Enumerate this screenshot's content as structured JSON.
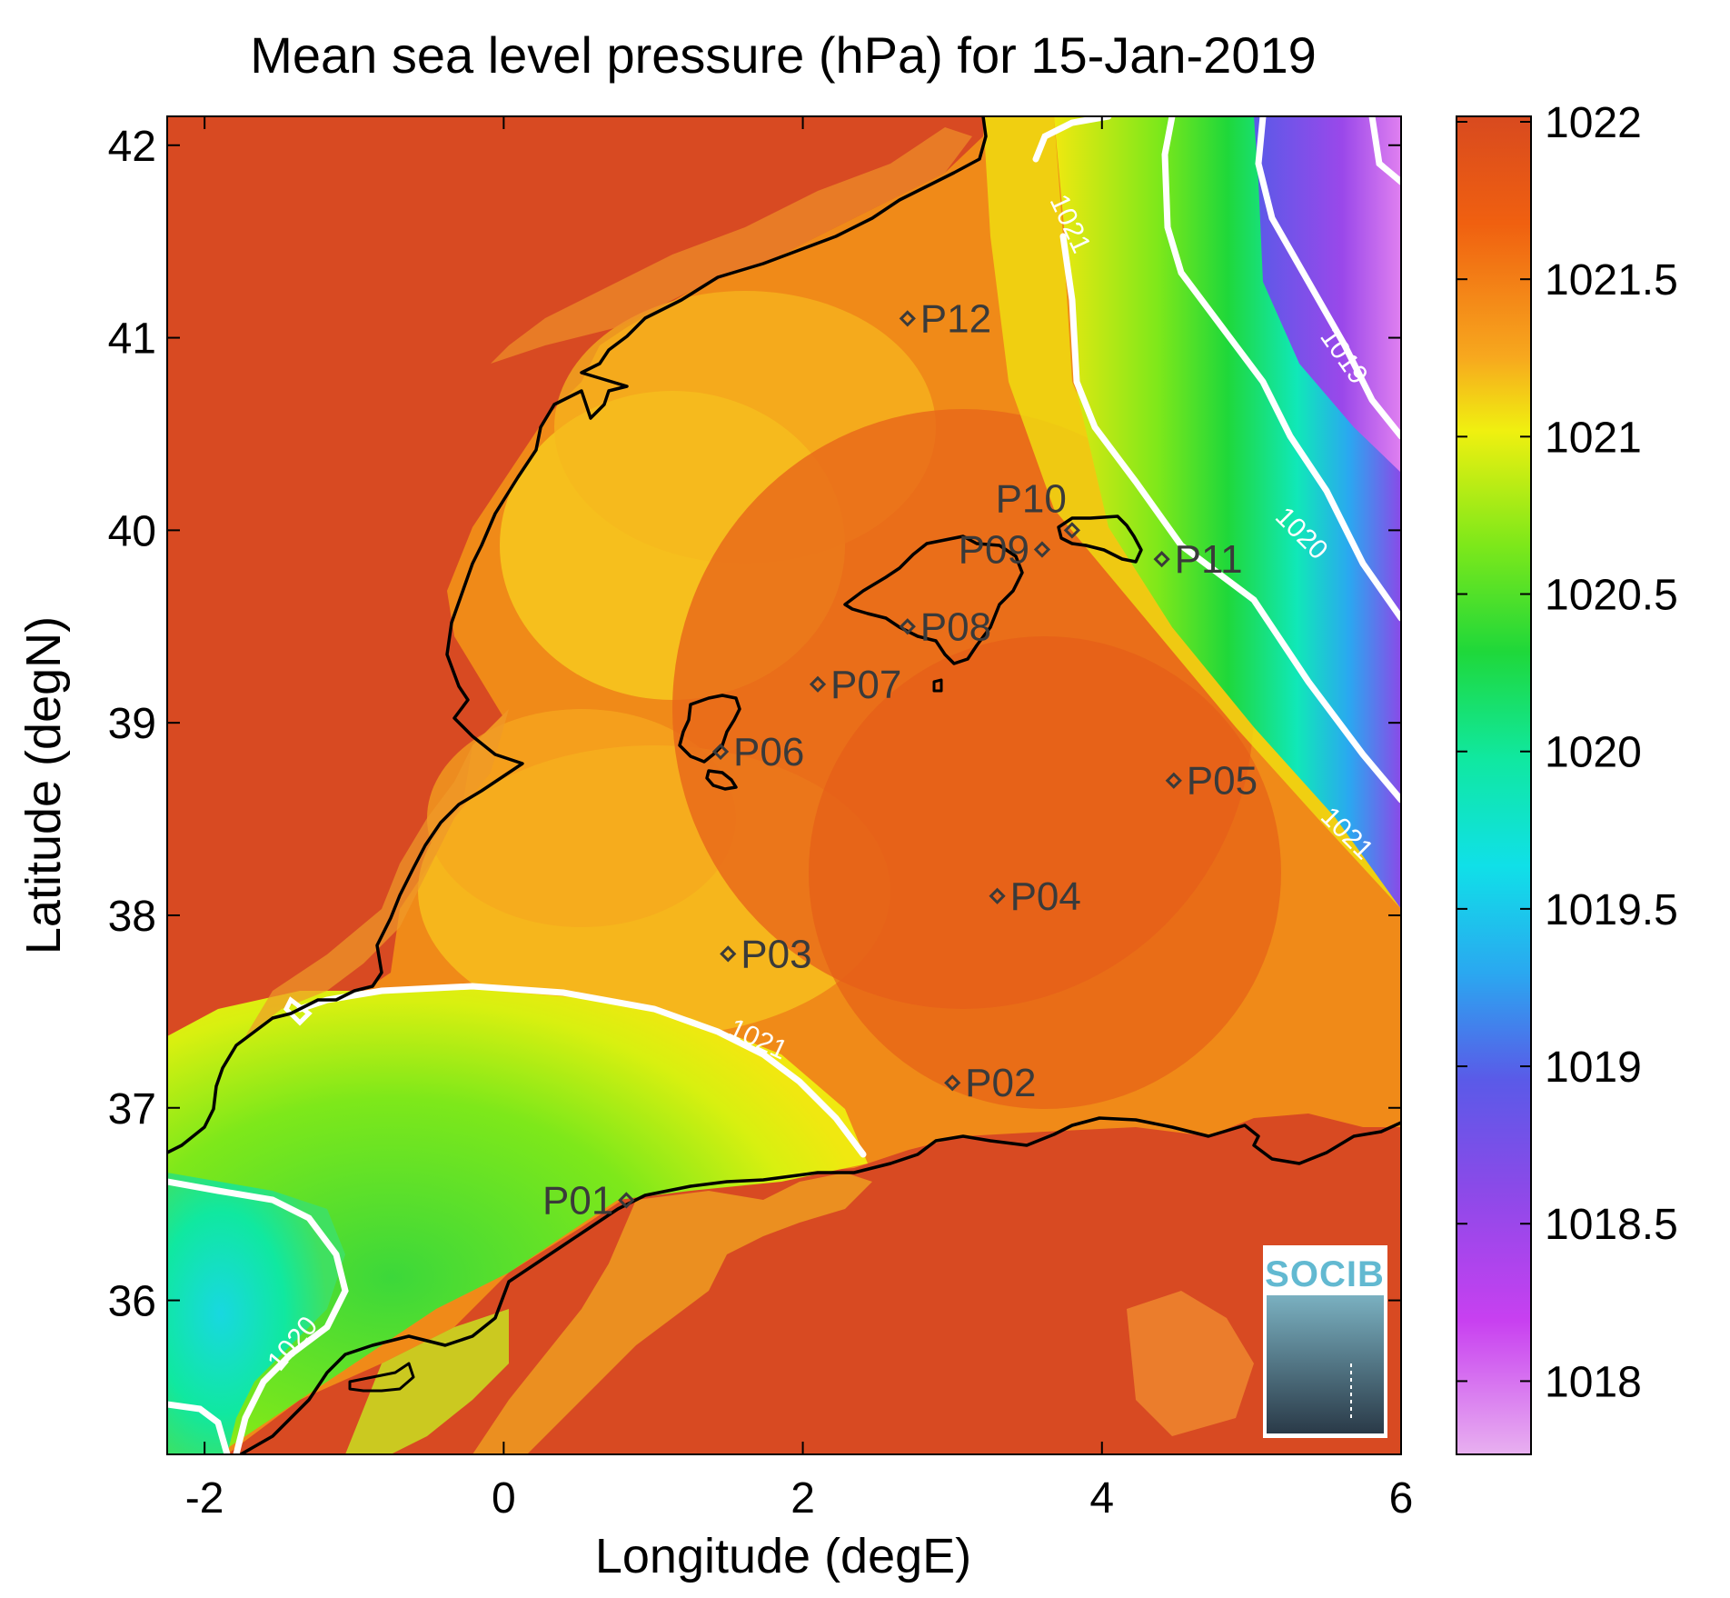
{
  "map": {
    "title": "Mean sea level pressure (hPa) for 15-Jan-2019",
    "xlabel": "Longitude (degE)",
    "ylabel": "Latitude (degN)",
    "x_ticks": [
      "-2",
      "0",
      "2",
      "4",
      "6"
    ],
    "y_ticks": [
      "42",
      "41",
      "40",
      "39",
      "38",
      "37",
      "36"
    ],
    "colorbar": {
      "ticks": [
        "1022",
        "1021.5",
        "1021",
        "1020.5",
        "1020",
        "1019.5",
        "1019",
        "1018.5",
        "1018"
      ],
      "colormap_top_to_bottom": [
        "#d84a1f",
        "#f06010",
        "#f7a81e",
        "#f0f010",
        "#7ee81a",
        "#1fd83a",
        "#10e8a0",
        "#10e0e8",
        "#2aa8f0",
        "#5a5ae8",
        "#8a4ae8",
        "#c840f0",
        "#e8b0f0"
      ]
    },
    "stations": [
      {
        "id": "P01",
        "lon": 0.82,
        "lat": 36.52
      },
      {
        "id": "P02",
        "lon": 3.0,
        "lat": 37.13
      },
      {
        "id": "P03",
        "lon": 1.5,
        "lat": 37.8
      },
      {
        "id": "P04",
        "lon": 3.3,
        "lat": 38.1
      },
      {
        "id": "P05",
        "lon": 4.48,
        "lat": 38.7
      },
      {
        "id": "P06",
        "lon": 1.45,
        "lat": 38.85
      },
      {
        "id": "P07",
        "lon": 2.1,
        "lat": 39.2
      },
      {
        "id": "P08",
        "lon": 2.7,
        "lat": 39.5
      },
      {
        "id": "P09",
        "lon": 3.6,
        "lat": 39.9
      },
      {
        "id": "P10",
        "lon": 3.8,
        "lat": 40.0
      },
      {
        "id": "P11",
        "lon": 4.4,
        "lat": 39.85
      },
      {
        "id": "P12",
        "lon": 2.7,
        "lat": 41.1
      }
    ],
    "contour_labels": [
      {
        "text": "1021"
      },
      {
        "text": "1019"
      },
      {
        "text": "1020"
      },
      {
        "text": "1021"
      },
      {
        "text": "1021"
      },
      {
        "text": "1020"
      }
    ],
    "logo_text": "SOCIB"
  }
}
